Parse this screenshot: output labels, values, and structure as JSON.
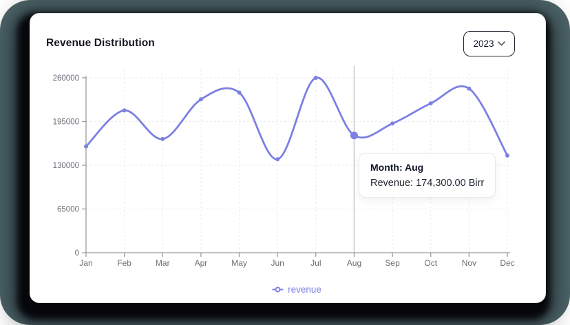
{
  "card": {
    "title": "Revenue Distribution"
  },
  "year_select": {
    "value": "2023"
  },
  "icons": {
    "year_dropdown": "chevron-down-icon",
    "legend_marker": "line-dot-icon"
  },
  "tooltip": {
    "title": "Month: Aug",
    "value": "Revenue: 174,300.00 Birr"
  },
  "legend": {
    "label": "revenue"
  },
  "colors": {
    "line": "#7c80e2",
    "active_dot": "#7c80e2",
    "legend_text": "#7e82e2",
    "axis": "#9a9aa2",
    "tick_label": "#6a6e76",
    "grid": "#ebebf0",
    "crosshair": "#c9c9cf",
    "backdrop": "#4d6569",
    "card_bg": "#ffffff"
  },
  "chart_data": {
    "type": "line",
    "title": "Revenue Distribution",
    "x": [
      "Jan",
      "Feb",
      "Mar",
      "Apr",
      "May",
      "Jun",
      "Jul",
      "Aug",
      "Sep",
      "Oct",
      "Nov",
      "Dec"
    ],
    "series": [
      {
        "name": "revenue",
        "values": [
          158000,
          211500,
          169000,
          228000,
          238000,
          139000,
          260000,
          174300,
          192000,
          222000,
          244000,
          144500
        ]
      }
    ],
    "xlabel": "",
    "ylabel": "",
    "ylim": [
      0,
      260000
    ],
    "yticks": [
      0,
      65000,
      130000,
      195000,
      260000
    ],
    "grid": true,
    "grid_style": "dashed",
    "legend_position": "bottom",
    "highlight": {
      "month": "Aug",
      "value": 174300,
      "unit": "Birr"
    }
  }
}
